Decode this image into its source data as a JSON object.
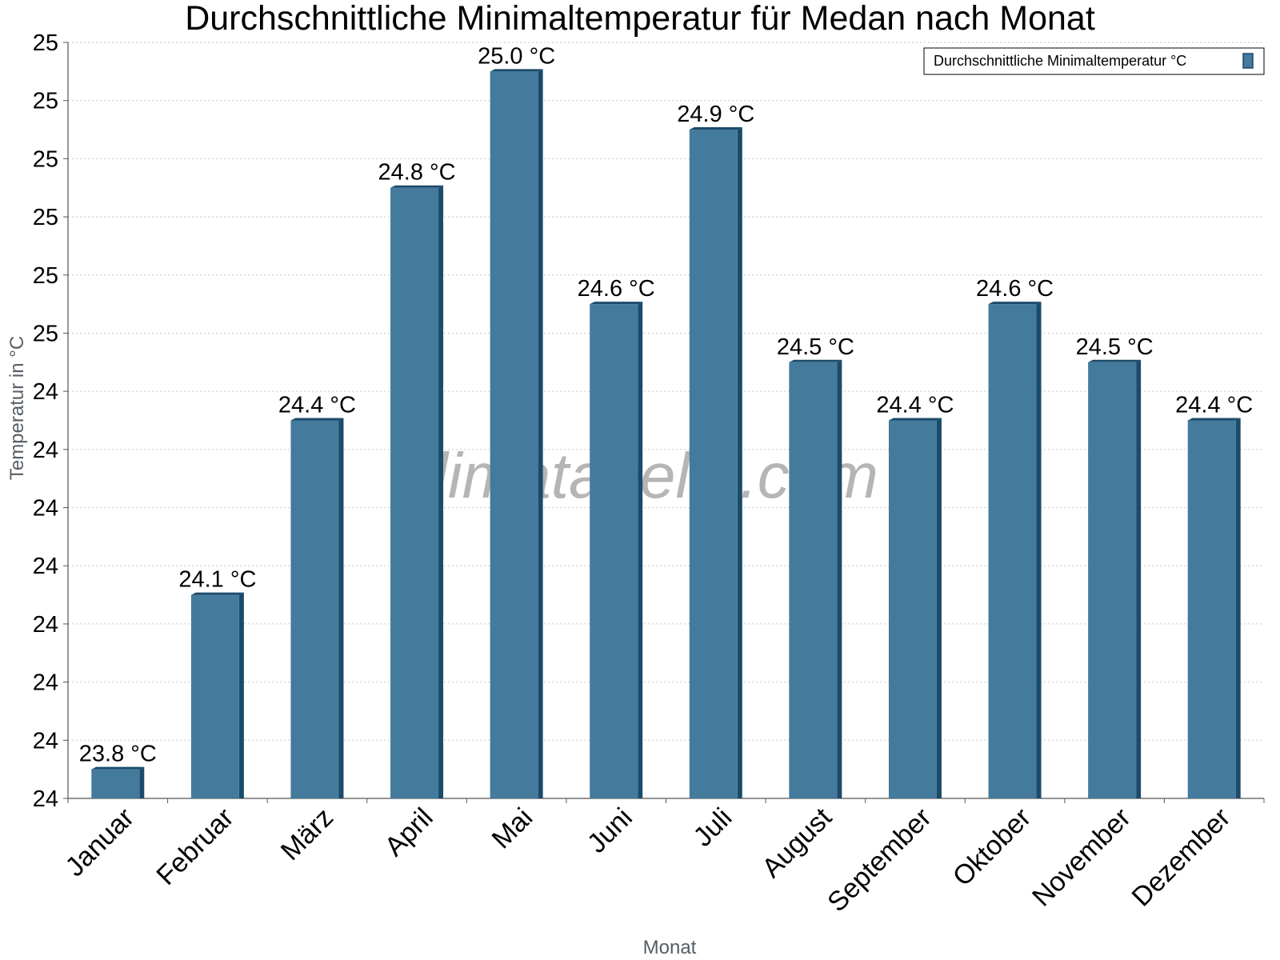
{
  "chart_data": {
    "type": "bar",
    "title": "Durchschnittliche Minimaltemperatur für Medan nach Monat",
    "xlabel": "Monat",
    "ylabel": "Temperatur in °C",
    "categories": [
      "Januar",
      "Februar",
      "März",
      "April",
      "Mai",
      "Juni",
      "Juli",
      "August",
      "September",
      "Oktober",
      "November",
      "Dezember"
    ],
    "series": [
      {
        "name": "Durchschnittliche Minimaltemperatur °C",
        "values": [
          23.8,
          24.1,
          24.4,
          24.8,
          25.0,
          24.6,
          24.9,
          24.5,
          24.4,
          24.6,
          24.5,
          24.4
        ],
        "labels": [
          "23.8 °C",
          "24.1 °C",
          "24.4 °C",
          "24.8 °C",
          "25.0 °C",
          "24.6 °C",
          "24.9 °C",
          "24.5 °C",
          "24.4 °C",
          "24.6 °C",
          "24.5 °C",
          "24.4 °C"
        ],
        "color": "#447a9c",
        "edge_color": "#1b4b6b"
      }
    ],
    "ylim": [
      23.75,
      25.05
    ],
    "yticks": [
      23.75,
      23.85,
      23.95,
      24.05,
      24.15,
      24.25,
      24.35,
      24.45,
      24.55,
      24.65,
      24.75,
      24.85,
      24.95,
      25.05
    ],
    "ytick_labels": [
      "24",
      "24",
      "24",
      "24",
      "24",
      "24",
      "24",
      "24",
      "25",
      "25",
      "25",
      "25",
      "25",
      "25"
    ],
    "grid": true,
    "legend_position": "top-right"
  },
  "watermark": "klimatabelle.com"
}
